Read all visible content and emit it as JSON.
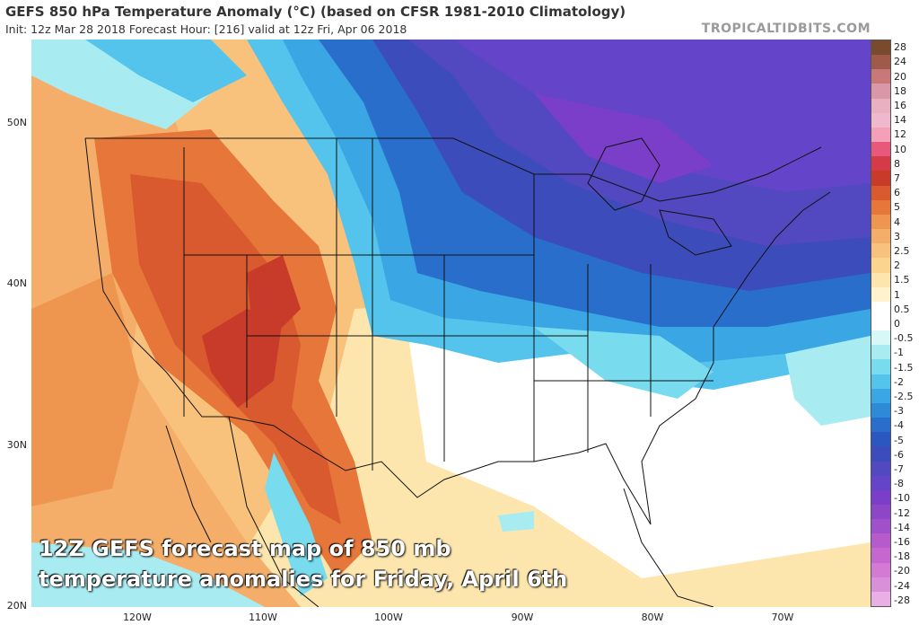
{
  "header": {
    "title": "GEFS 850 hPa Temperature Anomaly (°C) (based on CFSR 1981-2010 Climatology)",
    "subtitle": "Init: 12z Mar 28 2018   Forecast Hour: [216]   valid at 12z Fri, Apr 06 2018",
    "brand": "TROPICALTIDBITS.COM"
  },
  "caption": {
    "line1": "12Z GEFS forecast map of 850 mb",
    "line2": "temperature anomalies for Friday, April 6th"
  },
  "axes": {
    "lat_labels": [
      "50N",
      "40N",
      "30N",
      "20N"
    ],
    "lon_labels": [
      "120W",
      "110W",
      "100W",
      "90W",
      "80W",
      "70W"
    ]
  },
  "colorbar": {
    "labels": [
      "28",
      "24",
      "20",
      "18",
      "16",
      "14",
      "12",
      "10",
      "8",
      "7",
      "6",
      "5",
      "4",
      "3",
      "2.5",
      "2",
      "1.5",
      "1",
      "0.5",
      "0",
      "-0.5",
      "-1",
      "-1.5",
      "-2",
      "-2.5",
      "-3",
      "-4",
      "-5",
      "-6",
      "-7",
      "-8",
      "-10",
      "-12",
      "-14",
      "-16",
      "-18",
      "-20",
      "-24",
      "-28"
    ],
    "colors": [
      "#7a4a2e",
      "#a05a4a",
      "#c87878",
      "#d898a8",
      "#e8b0c0",
      "#f0b8cc",
      "#f4a0b8",
      "#e8587a",
      "#d43a48",
      "#c83a2a",
      "#d85a2e",
      "#e6763a",
      "#ee9650",
      "#f4ae6a",
      "#f8c27c",
      "#fbd490",
      "#fde6ae",
      "#fff2cc",
      "#ffffff",
      "#ffffff",
      "#d8f8f8",
      "#a8ecf2",
      "#78dcee",
      "#54c4ec",
      "#3aa6e4",
      "#2e8ad6",
      "#2a6ecc",
      "#2a58c0",
      "#3c4cba",
      "#5248c0",
      "#6444c8",
      "#7a3ec8",
      "#8c46c6",
      "#a050c8",
      "#b65acc",
      "#c468d0",
      "#d27ad4",
      "#d890d8",
      "#e8b0e4"
    ]
  }
}
